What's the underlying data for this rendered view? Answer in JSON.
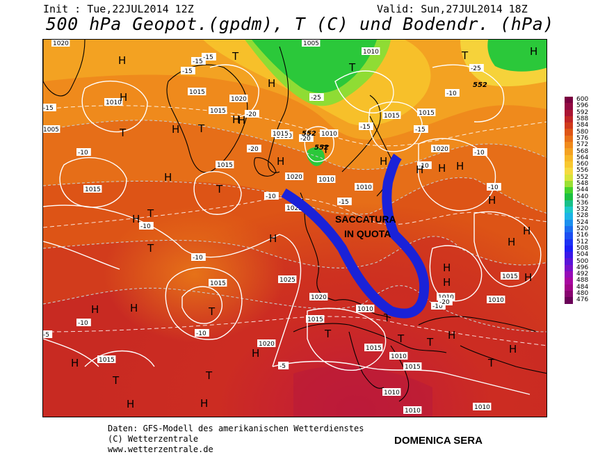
{
  "header": {
    "init": "Init : Tue,22JUL2014 12Z",
    "valid": "Valid: Sun,27JUL2014 18Z",
    "title": "500 hPa Geopot.(gpdm), T (C) und Bodendr. (hPa)"
  },
  "annotations": {
    "trough_label_line1": "SACCATURA",
    "trough_label_line2": "IN QUOTA",
    "caption": "DOMENICA SERA",
    "trough_color": "#1a22d8"
  },
  "footer": {
    "line1": "Daten: GFS-Modell des amerikanischen Wetterdienstes",
    "line2": "(C) Wetterzentrale",
    "line3": "www.wetterzentrale.de"
  },
  "legend": [
    {
      "label": "600",
      "color": "#7a0040"
    },
    {
      "label": "596",
      "color": "#930a43"
    },
    {
      "label": "592",
      "color": "#aa1533"
    },
    {
      "label": "588",
      "color": "#c02525"
    },
    {
      "label": "584",
      "color": "#d03a1c"
    },
    {
      "label": "580",
      "color": "#de5516"
    },
    {
      "label": "576",
      "color": "#e87018"
    },
    {
      "label": "572",
      "color": "#f08a1c"
    },
    {
      "label": "568",
      "color": "#f4a222"
    },
    {
      "label": "564",
      "color": "#f7b828"
    },
    {
      "label": "560",
      "color": "#f8c830"
    },
    {
      "label": "556",
      "color": "#f6da40"
    },
    {
      "label": "552",
      "color": "#d8e43a"
    },
    {
      "label": "548",
      "color": "#9be034"
    },
    {
      "label": "544",
      "color": "#46d22c"
    },
    {
      "label": "540",
      "color": "#1cc040"
    },
    {
      "label": "536",
      "color": "#18c08a"
    },
    {
      "label": "532",
      "color": "#1cc8c8"
    },
    {
      "label": "528",
      "color": "#1cb4e6"
    },
    {
      "label": "524",
      "color": "#1c90ee"
    },
    {
      "label": "520",
      "color": "#1c6ef0"
    },
    {
      "label": "516",
      "color": "#1c4ef2"
    },
    {
      "label": "512",
      "color": "#1c32f4"
    },
    {
      "label": "508",
      "color": "#1c1ef6"
    },
    {
      "label": "504",
      "color": "#3a18e8"
    },
    {
      "label": "500",
      "color": "#5a14d8"
    },
    {
      "label": "496",
      "color": "#7810c8"
    },
    {
      "label": "492",
      "color": "#960cb8"
    },
    {
      "label": "488",
      "color": "#a808a0"
    },
    {
      "label": "484",
      "color": "#a00688"
    },
    {
      "label": "480",
      "color": "#880470"
    },
    {
      "label": "476",
      "color": "#6a0258"
    }
  ],
  "map": {
    "pressure_labels": [
      "1020",
      "1005",
      "1010",
      "1010",
      "1015",
      "1020",
      "1015",
      "1005",
      "1010",
      "1015",
      "1015",
      "1010",
      "1015",
      "1020",
      "1015",
      "1015",
      "1020",
      "1010",
      "1010",
      "1025",
      "1025",
      "1015",
      "1020",
      "1010",
      "1015",
      "1010",
      "1015",
      "1015",
      "1020",
      "1015",
      "1010",
      "1015",
      "1010",
      "1010",
      "1010",
      "1010"
    ],
    "temp_labels": [
      "-15",
      "-15",
      "-15",
      "-20",
      "-10",
      "-20",
      "-25",
      "-20",
      "-25",
      "-15",
      "-15",
      "-10",
      "-15",
      "-10",
      "-10",
      "-10",
      "-10",
      "-10",
      "-10",
      "-10",
      "-5",
      "-5",
      "-10",
      "-10",
      "-15",
      "-20"
    ],
    "height_labels": [
      "552",
      "552",
      "552"
    ],
    "H_markers": [
      "H",
      "H",
      "H",
      "H",
      "H",
      "H",
      "H",
      "H",
      "H",
      "H",
      "H",
      "H",
      "H",
      "H",
      "H",
      "H",
      "H",
      "H",
      "H",
      "H",
      "H",
      "H",
      "H",
      "H",
      "H",
      "H",
      "H",
      "H",
      "H"
    ],
    "T_markers": [
      "T",
      "T",
      "T",
      "T",
      "T",
      "T",
      "T",
      "T",
      "T",
      "T",
      "T",
      "T",
      "T",
      "T",
      "T",
      "T",
      "T"
    ]
  }
}
